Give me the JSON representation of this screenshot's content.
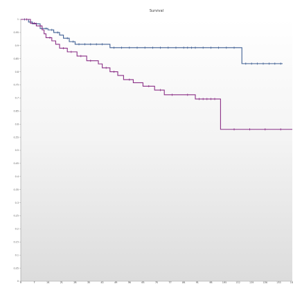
{
  "chart_data": {
    "type": "line",
    "title": "Survival",
    "xlabel": "",
    "ylabel": "",
    "xlim": [
      0,
      140
    ],
    "ylim": [
      0,
      1.0
    ],
    "x_ticks": [
      0,
      7,
      14,
      21,
      28,
      35,
      42,
      49,
      56,
      63,
      70,
      77,
      84,
      91,
      98,
      105,
      112,
      119,
      126,
      133,
      140
    ],
    "y_ticks": [
      0,
      0.05,
      0.1,
      0.15,
      0.2,
      0.25,
      0.3,
      0.35,
      0.4,
      0.45,
      0.5,
      0.55,
      0.6,
      0.65,
      0.7,
      0.75,
      0.8,
      0.85,
      0.9,
      0.95,
      1.0
    ],
    "grid": false,
    "background": "vertical gradient white to light gray",
    "colors": {
      "series_a": "#3f5f93",
      "series_b": "#8a2f86"
    },
    "series": [
      {
        "steps": [
          [
            0,
            1.0
          ],
          [
            4,
            0.99
          ],
          [
            6,
            0.983
          ],
          [
            10,
            0.965
          ],
          [
            14,
            0.96
          ],
          [
            17,
            0.95
          ],
          [
            20,
            0.94
          ],
          [
            22,
            0.928
          ],
          [
            25,
            0.915
          ],
          [
            28,
            0.905
          ],
          [
            46,
            0.892
          ],
          [
            114,
            0.831
          ],
          [
            135,
            0.831
          ]
        ],
        "censor": [
          2,
          5,
          8,
          11,
          13,
          16,
          19,
          24,
          27,
          30,
          33,
          36,
          39,
          42,
          48,
          52,
          56,
          60,
          64,
          68,
          72,
          76,
          80,
          84,
          86,
          88,
          90,
          94,
          98,
          102,
          106,
          110,
          116,
          119,
          122,
          125,
          128,
          131,
          134
        ]
      },
      {
        "steps": [
          [
            0,
            1.0
          ],
          [
            5,
            0.985
          ],
          [
            8,
            0.975
          ],
          [
            11,
            0.96
          ],
          [
            12,
            0.945
          ],
          [
            13,
            0.93
          ],
          [
            16,
            0.918
          ],
          [
            18,
            0.905
          ],
          [
            20,
            0.89
          ],
          [
            24,
            0.876
          ],
          [
            29,
            0.86
          ],
          [
            34,
            0.842
          ],
          [
            40,
            0.83
          ],
          [
            42,
            0.815
          ],
          [
            46,
            0.8
          ],
          [
            50,
            0.786
          ],
          [
            53,
            0.77
          ],
          [
            58,
            0.758
          ],
          [
            63,
            0.745
          ],
          [
            69,
            0.73
          ],
          [
            74,
            0.712
          ],
          [
            90,
            0.696
          ],
          [
            103,
            0.58
          ],
          [
            140,
            0.58
          ]
        ],
        "censor": [
          3,
          7,
          10,
          15,
          22,
          26,
          31,
          36,
          44,
          48,
          56,
          66,
          72,
          78,
          86,
          92,
          94,
          96,
          98,
          100,
          110,
          118,
          126,
          134
        ]
      }
    ]
  }
}
